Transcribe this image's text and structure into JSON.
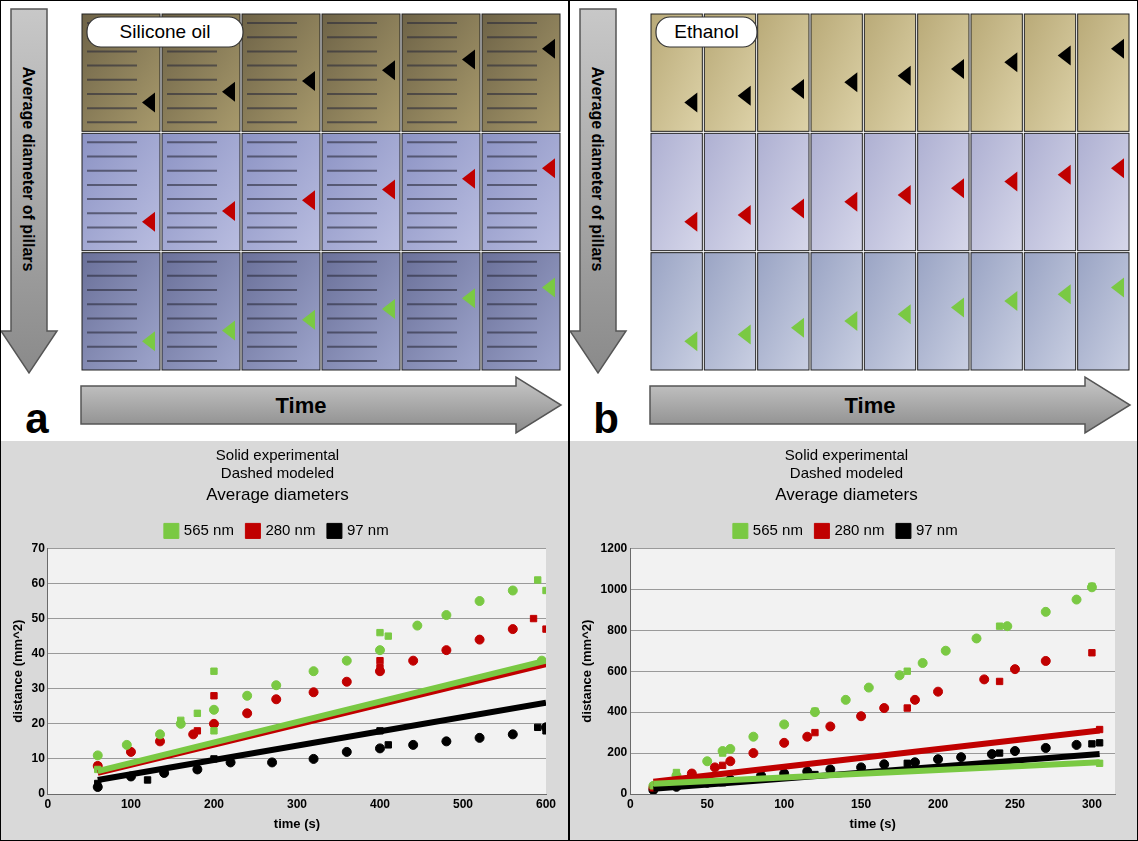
{
  "panels": [
    {
      "letter": "a",
      "liquid": "Silicone oil",
      "vertical_arrow": "Average diameter of pillars",
      "horizontal_arrow": "Time"
    },
    {
      "letter": "b",
      "liquid": "Ethanol",
      "vertical_arrow": "Average diameter of pillars",
      "horizontal_arrow": "Time"
    }
  ],
  "chart_data": [
    {
      "type": "scatter",
      "legend_title": "Average diameters",
      "annotations": [
        "Solid experimental",
        "Dashed modeled"
      ],
      "x_label": "time (s)",
      "y_label": "distance (mm^2)",
      "xlim": [
        0,
        600
      ],
      "xticks": [
        0,
        100,
        200,
        300,
        400,
        500,
        600
      ],
      "ylim": [
        0,
        70
      ],
      "yticks": [
        0,
        10,
        20,
        30,
        40,
        50,
        60,
        70
      ],
      "grid": true,
      "legend": "top",
      "series": [
        {
          "name": "565 nm",
          "color": "#7ac943",
          "marker": "square",
          "x": [
            60,
            160,
            180,
            200,
            200,
            400,
            410,
            590,
            600
          ],
          "values": [
            7,
            21,
            23,
            35,
            18,
            46,
            45,
            61,
            58
          ]
        },
        {
          "name": "280 nm",
          "color": "#c00000",
          "marker": "square",
          "x": [
            60,
            180,
            200,
            400,
            400,
            585,
            600
          ],
          "values": [
            8,
            18,
            28,
            38,
            36,
            50,
            47
          ]
        },
        {
          "name": "97 nm",
          "color": "#000000",
          "marker": "square",
          "x": [
            60,
            120,
            180,
            200,
            400,
            410,
            590,
            600
          ],
          "values": [
            3,
            4,
            7,
            10,
            18,
            14,
            19,
            18
          ]
        },
        {
          "color": "#7ac943",
          "marker": "circle",
          "x": [
            60,
            95,
            135,
            160,
            200,
            240,
            275,
            320,
            360,
            400,
            445,
            480,
            520,
            560,
            595
          ],
          "values": [
            11,
            14,
            17,
            20,
            24,
            28,
            31,
            35,
            38,
            41,
            48,
            51,
            55,
            58,
            38
          ]
        },
        {
          "color": "#c00000",
          "marker": "circle",
          "x": [
            60,
            100,
            135,
            175,
            200,
            240,
            275,
            320,
            360,
            400,
            440,
            480,
            520,
            560
          ],
          "values": [
            8,
            12,
            15,
            17,
            20,
            23,
            27,
            29,
            32,
            35,
            38,
            41,
            44,
            47
          ]
        },
        {
          "color": "#000000",
          "marker": "circle",
          "x": [
            60,
            100,
            140,
            180,
            220,
            270,
            320,
            360,
            400,
            440,
            480,
            520,
            560,
            600
          ],
          "values": [
            2,
            5,
            6,
            7,
            9,
            9,
            10,
            12,
            13,
            14,
            15,
            16,
            17,
            19
          ]
        },
        {
          "type": "line",
          "color": "#7ac943",
          "line_style": "solid",
          "x": [
            60,
            600
          ],
          "values": [
            6.5,
            38
          ]
        },
        {
          "type": "line",
          "color": "#c00000",
          "line_style": "solid",
          "x": [
            60,
            600
          ],
          "values": [
            6,
            37
          ]
        },
        {
          "type": "line",
          "color": "#000000",
          "line_style": "solid",
          "x": [
            60,
            600
          ],
          "values": [
            4,
            26
          ]
        }
      ]
    },
    {
      "type": "scatter",
      "legend_title": "Average diameters",
      "annotations": [
        "Solid experimental",
        "Dashed modeled"
      ],
      "x_label": "time (s)",
      "y_label": "distance (mm^2)",
      "xlim": [
        0,
        315
      ],
      "xticks": [
        0,
        50,
        100,
        150,
        200,
        250,
        300
      ],
      "ylim": [
        0,
        1200
      ],
      "yticks": [
        0,
        200,
        400,
        600,
        800,
        1000,
        1200
      ],
      "grid": true,
      "legend": "top",
      "series": [
        {
          "name": "565 nm",
          "color": "#7ac943",
          "marker": "square",
          "x": [
            15,
            30,
            60,
            120,
            180,
            240,
            300,
            305
          ],
          "values": [
            40,
            105,
            200,
            405,
            600,
            820,
            1015,
            150
          ]
        },
        {
          "name": "280 nm",
          "color": "#c00000",
          "marker": "square",
          "x": [
            15,
            60,
            120,
            180,
            240,
            300,
            305
          ],
          "values": [
            30,
            140,
            300,
            420,
            550,
            690,
            315
          ]
        },
        {
          "name": "97 nm",
          "color": "#000000",
          "marker": "square",
          "x": [
            15,
            60,
            120,
            180,
            240,
            300,
            305
          ],
          "values": [
            20,
            55,
            95,
            150,
            200,
            245,
            250
          ]
        },
        {
          "color": "#7ac943",
          "marker": "circle",
          "x": [
            15,
            30,
            50,
            60,
            65,
            80,
            100,
            120,
            140,
            155,
            175,
            190,
            205,
            225,
            245,
            270,
            290,
            300
          ],
          "values": [
            40,
            90,
            160,
            210,
            220,
            280,
            340,
            400,
            460,
            520,
            580,
            640,
            700,
            760,
            820,
            890,
            950,
            1010
          ]
        },
        {
          "color": "#c00000",
          "marker": "circle",
          "x": [
            15,
            40,
            55,
            65,
            80,
            100,
            115,
            130,
            150,
            165,
            185,
            200,
            230,
            250,
            270
          ],
          "values": [
            30,
            100,
            130,
            160,
            200,
            250,
            280,
            330,
            380,
            420,
            460,
            500,
            560,
            610,
            650
          ]
        },
        {
          "color": "#000000",
          "marker": "circle",
          "x": [
            15,
            30,
            50,
            65,
            85,
            100,
            115,
            130,
            150,
            165,
            185,
            200,
            215,
            235,
            250,
            270,
            290
          ],
          "values": [
            20,
            35,
            55,
            70,
            90,
            100,
            110,
            120,
            130,
            145,
            155,
            170,
            180,
            195,
            210,
            225,
            240
          ]
        },
        {
          "type": "line",
          "color": "#7ac943",
          "line_style": "solid",
          "x": [
            15,
            305
          ],
          "values": [
            50,
            155
          ]
        },
        {
          "type": "line",
          "color": "#c00000",
          "line_style": "solid",
          "x": [
            15,
            305
          ],
          "values": [
            60,
            310
          ]
        },
        {
          "type": "line",
          "color": "#000000",
          "line_style": "solid",
          "x": [
            15,
            305
          ],
          "values": [
            25,
            195
          ]
        }
      ]
    }
  ]
}
